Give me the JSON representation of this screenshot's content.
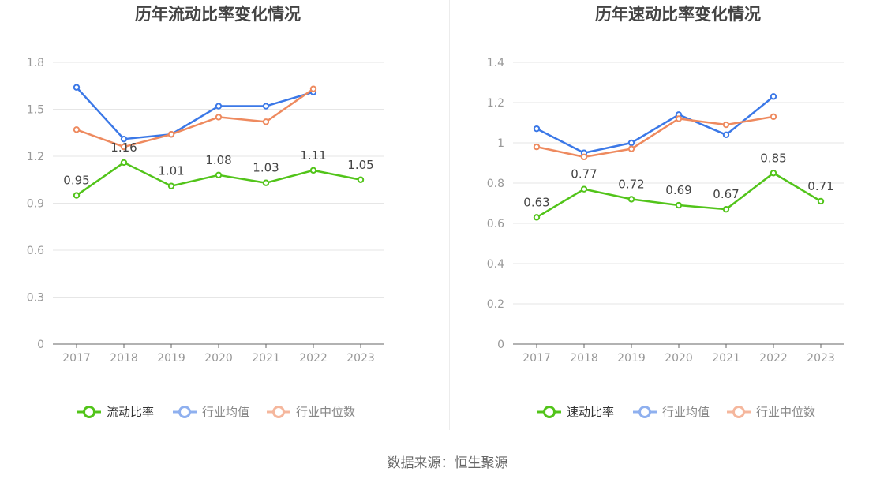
{
  "colors": {
    "green": "#52c41a",
    "blue": "#3b78e7",
    "orange": "#ee8a5f",
    "legend_blue": "#8fb0ef",
    "legend_orange": "#f5b79d",
    "grid": "#e6e6e6",
    "axis": "#666666",
    "tick_text": "#999999",
    "title_text": "#444444"
  },
  "source_text": "数据来源：恒生聚源",
  "chart_data": [
    {
      "type": "line",
      "title": "历年流动比率变化情况",
      "categories": [
        "2017",
        "2018",
        "2019",
        "2020",
        "2021",
        "2022",
        "2023"
      ],
      "ylim": [
        0,
        1.8
      ],
      "yticks": [
        "0",
        "0.3",
        "0.6",
        "0.9",
        "1.2",
        "1.5",
        "1.8"
      ],
      "grid": true,
      "legend_position": "bottom",
      "series": [
        {
          "name": "流动比率",
          "color_key": "green",
          "legend_color_key": "green",
          "labels": true,
          "values": [
            0.95,
            1.16,
            1.01,
            1.08,
            1.03,
            1.11,
            1.05
          ],
          "value_labels": [
            "0.95",
            "1.16",
            "1.01",
            "1.08",
            "1.03",
            "1.11",
            "1.05"
          ]
        },
        {
          "name": "行业均值",
          "color_key": "blue",
          "legend_color_key": "legend_blue",
          "labels": false,
          "values": [
            1.64,
            1.31,
            1.34,
            1.52,
            1.52,
            1.61,
            null
          ]
        },
        {
          "name": "行业中位数",
          "color_key": "orange",
          "legend_color_key": "legend_orange",
          "labels": false,
          "values": [
            1.37,
            1.26,
            1.34,
            1.45,
            1.42,
            1.63,
            null
          ]
        }
      ]
    },
    {
      "type": "line",
      "title": "历年速动比率变化情况",
      "categories": [
        "2017",
        "2018",
        "2019",
        "2020",
        "2021",
        "2022",
        "2023"
      ],
      "ylim": [
        0,
        1.4
      ],
      "yticks": [
        "0",
        "0.2",
        "0.4",
        "0.6",
        "0.8",
        "1",
        "1.2",
        "1.4"
      ],
      "grid": true,
      "legend_position": "bottom",
      "series": [
        {
          "name": "速动比率",
          "color_key": "green",
          "legend_color_key": "green",
          "labels": true,
          "values": [
            0.63,
            0.77,
            0.72,
            0.69,
            0.67,
            0.85,
            0.71
          ],
          "value_labels": [
            "0.63",
            "0.77",
            "0.72",
            "0.69",
            "0.67",
            "0.85",
            "0.71"
          ]
        },
        {
          "name": "行业均值",
          "color_key": "blue",
          "legend_color_key": "legend_blue",
          "labels": false,
          "values": [
            1.07,
            0.95,
            1.0,
            1.14,
            1.04,
            1.23,
            null
          ]
        },
        {
          "name": "行业中位数",
          "color_key": "orange",
          "legend_color_key": "legend_orange",
          "labels": false,
          "values": [
            0.98,
            0.93,
            0.97,
            1.12,
            1.09,
            1.13,
            null
          ]
        }
      ]
    }
  ]
}
